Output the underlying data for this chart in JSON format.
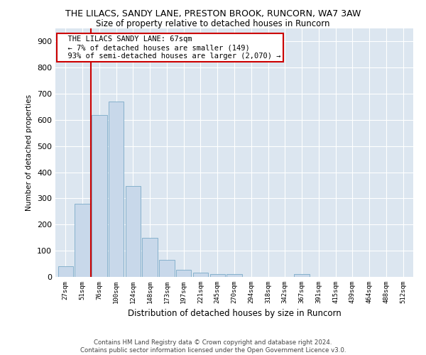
{
  "title": "THE LILACS, SANDY LANE, PRESTON BROOK, RUNCORN, WA7 3AW",
  "subtitle": "Size of property relative to detached houses in Runcorn",
  "xlabel": "Distribution of detached houses by size in Runcorn",
  "ylabel": "Number of detached properties",
  "bar_color": "#c8d8ea",
  "bar_edge_color": "#7aaac8",
  "background_color": "#dce6f0",
  "grid_color": "#ffffff",
  "annotation_box_color": "#cc0000",
  "vline_color": "#cc0000",
  "annotation_text": "  THE LILACS SANDY LANE: 67sqm\n  ← 7% of detached houses are smaller (149)\n  93% of semi-detached houses are larger (2,070) →",
  "categories": [
    "27sqm",
    "51sqm",
    "76sqm",
    "100sqm",
    "124sqm",
    "148sqm",
    "173sqm",
    "197sqm",
    "221sqm",
    "245sqm",
    "270sqm",
    "294sqm",
    "318sqm",
    "342sqm",
    "367sqm",
    "391sqm",
    "415sqm",
    "439sqm",
    "464sqm",
    "488sqm",
    "512sqm"
  ],
  "values": [
    42,
    280,
    620,
    670,
    347,
    148,
    65,
    28,
    15,
    12,
    12,
    0,
    0,
    0,
    10,
    0,
    0,
    0,
    0,
    0,
    0
  ],
  "ylim": [
    0,
    950
  ],
  "yticks": [
    0,
    100,
    200,
    300,
    400,
    500,
    600,
    700,
    800,
    900
  ],
  "vline_bar_index": 1,
  "footer": "Contains HM Land Registry data © Crown copyright and database right 2024.\nContains public sector information licensed under the Open Government Licence v3.0."
}
